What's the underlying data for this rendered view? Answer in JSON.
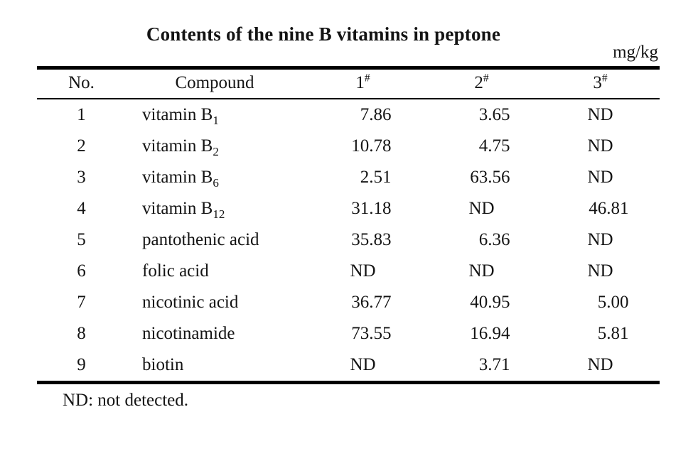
{
  "title": "Contents of the nine B vitamins in peptone",
  "unit": "mg/kg",
  "footnote": "ND: not detected.",
  "table": {
    "columns": [
      {
        "label": "No.",
        "sup": ""
      },
      {
        "label": "Compound",
        "sup": ""
      },
      {
        "label": "1",
        "sup": "#"
      },
      {
        "label": "2",
        "sup": "#"
      },
      {
        "label": "3",
        "sup": "#"
      }
    ],
    "rows": [
      {
        "no": "1",
        "compound": "vitamin B",
        "compound_sub": "1",
        "values": [
          "7.86",
          "3.65",
          "ND"
        ]
      },
      {
        "no": "2",
        "compound": "vitamin B",
        "compound_sub": "2",
        "values": [
          "10.78",
          "4.75",
          "ND"
        ]
      },
      {
        "no": "3",
        "compound": "vitamin B",
        "compound_sub": "6",
        "values": [
          "2.51",
          "63.56",
          "ND"
        ]
      },
      {
        "no": "4",
        "compound": "vitamin B",
        "compound_sub": "12",
        "values": [
          "31.18",
          "ND",
          "46.81"
        ]
      },
      {
        "no": "5",
        "compound": "pantothenic acid",
        "compound_sub": "",
        "values": [
          "35.83",
          "6.36",
          "ND"
        ]
      },
      {
        "no": "6",
        "compound": "folic acid",
        "compound_sub": "",
        "values": [
          "ND",
          "ND",
          "ND"
        ]
      },
      {
        "no": "7",
        "compound": "nicotinic acid",
        "compound_sub": "",
        "values": [
          "36.77",
          "40.95",
          "5.00"
        ]
      },
      {
        "no": "8",
        "compound": "nicotinamide",
        "compound_sub": "",
        "values": [
          "73.55",
          "16.94",
          "5.81"
        ]
      },
      {
        "no": "9",
        "compound": "biotin",
        "compound_sub": "",
        "values": [
          "ND",
          "3.71",
          "ND"
        ]
      }
    ]
  },
  "chart_data": {
    "type": "table",
    "title": "Contents of the nine B vitamins in peptone",
    "unit": "mg/kg",
    "columns": [
      "No.",
      "Compound",
      "1#",
      "2#",
      "3#"
    ],
    "rows": [
      [
        "1",
        "vitamin B1",
        "7.86",
        "3.65",
        "ND"
      ],
      [
        "2",
        "vitamin B2",
        "10.78",
        "4.75",
        "ND"
      ],
      [
        "3",
        "vitamin B6",
        "2.51",
        "63.56",
        "ND"
      ],
      [
        "4",
        "vitamin B12",
        "31.18",
        "ND",
        "46.81"
      ],
      [
        "5",
        "pantothenic acid",
        "35.83",
        "6.36",
        "ND"
      ],
      [
        "6",
        "folic acid",
        "ND",
        "ND",
        "ND"
      ],
      [
        "7",
        "nicotinic acid",
        "36.77",
        "40.95",
        "5.00"
      ],
      [
        "8",
        "nicotinamide",
        "73.55",
        "16.94",
        "5.81"
      ],
      [
        "9",
        "biotin",
        "ND",
        "3.71",
        "ND"
      ]
    ],
    "footnote": "ND: not detected."
  }
}
